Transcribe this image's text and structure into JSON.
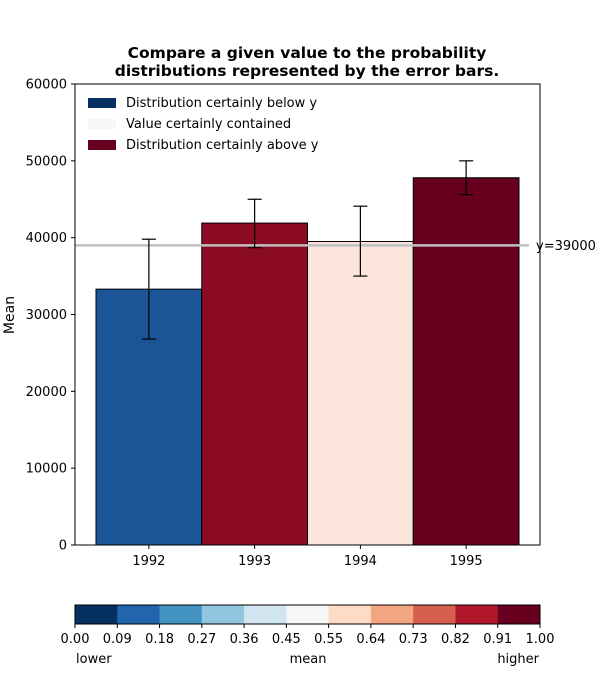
{
  "chart_data": {
    "type": "bar",
    "title_lines": [
      "Compare a given value to the probability",
      "distributions represented by the error bars."
    ],
    "xlabel": "",
    "ylabel": "Mean",
    "categories": [
      "1992",
      "1993",
      "1994",
      "1995"
    ],
    "values": [
      33300,
      41900,
      39500,
      47800
    ],
    "err_low": [
      26800,
      38700,
      35000,
      45600
    ],
    "err_high": [
      39800,
      45000,
      44100,
      50000
    ],
    "bar_colors": [
      "#1b5597",
      "#8b0b23",
      "#fbe5dd",
      "#67001f"
    ],
    "ylim": [
      0,
      60000
    ],
    "yticks": [
      0,
      10000,
      20000,
      30000,
      40000,
      50000,
      60000
    ],
    "yticks_labels": [
      "0",
      "10000",
      "20000",
      "30000",
      "40000",
      "50000",
      "60000"
    ],
    "reference_line": {
      "value": 39000,
      "label": "y=39000",
      "color": "#c0c0c0"
    },
    "legend": {
      "position": "top-left",
      "entries": [
        {
          "label": "Distribution certainly below y",
          "color": "#053061"
        },
        {
          "label": "Value certainly contained",
          "color": "#f7f7f7"
        },
        {
          "label": "Distribution certainly above y",
          "color": "#67001f"
        }
      ]
    },
    "colorbar": {
      "colors": [
        "#053061",
        "#2166ac",
        "#4393c3",
        "#92c5de",
        "#d1e5f0",
        "#f7f7f7",
        "#fddbc7",
        "#f4a582",
        "#d6604d",
        "#b2182b",
        "#67001f"
      ],
      "ticks": [
        "0.00",
        "0.09",
        "0.18",
        "0.27",
        "0.36",
        "0.45",
        "0.55",
        "0.64",
        "0.73",
        "0.82",
        "0.91",
        "1.00"
      ],
      "labels": [
        "lower",
        "mean",
        "higher"
      ]
    }
  }
}
